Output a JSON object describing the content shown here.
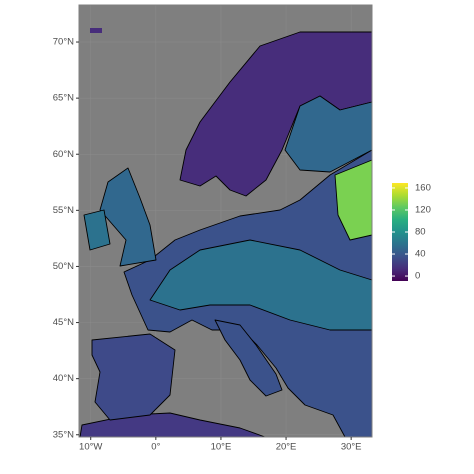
{
  "chart_data": {
    "type": "raster-map",
    "xlim": [
      -11.8,
      33.2
    ],
    "ylim": [
      34.8,
      73.3
    ],
    "xticks": [
      {
        "value": -10,
        "label": "10°W"
      },
      {
        "value": 0,
        "label": "0°"
      },
      {
        "value": 10,
        "label": "10°E"
      },
      {
        "value": 20,
        "label": "20°E"
      },
      {
        "value": 30,
        "label": "30°E"
      }
    ],
    "yticks": [
      {
        "value": 35,
        "label": "35°N"
      },
      {
        "value": 40,
        "label": "40°N"
      },
      {
        "value": 45,
        "label": "45°N"
      },
      {
        "value": 50,
        "label": "50°N"
      },
      {
        "value": 55,
        "label": "55°N"
      },
      {
        "value": 60,
        "label": "60°N"
      },
      {
        "value": 65,
        "label": "65°N"
      },
      {
        "value": 70,
        "label": "70°N"
      }
    ],
    "grid": true,
    "legend_position": "right",
    "colorbar": {
      "lim": [
        -9,
        169
      ],
      "ticks": [
        0,
        40,
        80,
        120,
        160
      ],
      "colors": [
        "#440154",
        "#472d7b",
        "#3b528b",
        "#2c728e",
        "#21918c",
        "#28ae80",
        "#5ec962",
        "#addc30",
        "#fde725"
      ]
    }
  }
}
